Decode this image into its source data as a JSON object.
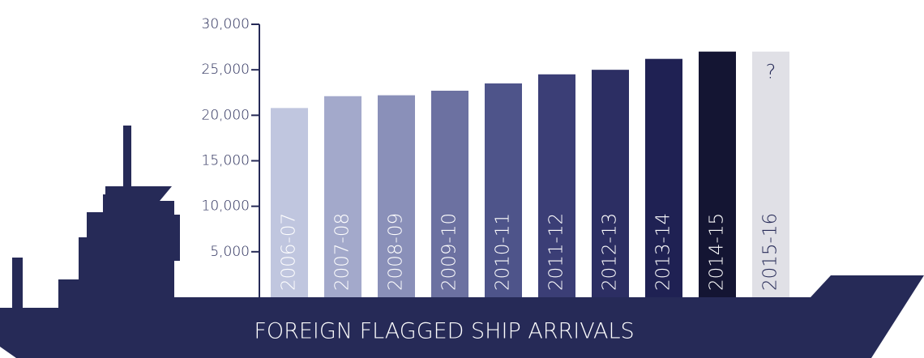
{
  "chart_data": {
    "type": "bar",
    "title": "FOREIGN FLAGGED SHIP ARRIVALS",
    "categories": [
      "2006-07",
      "2007-08",
      "2008-09",
      "2009-10",
      "2010-11",
      "2011-12",
      "2012-13",
      "2013-14",
      "2014-15",
      "2015-16"
    ],
    "values": [
      20800,
      22100,
      22200,
      22700,
      23500,
      24500,
      25000,
      26200,
      27000,
      27000
    ],
    "colors": [
      "#c0c6df",
      "#a3a9cb",
      "#8a90b9",
      "#6c71a1",
      "#4e548a",
      "#3b3e76",
      "#2c2e63",
      "#1f2153",
      "#141533",
      "#e0e0e6"
    ],
    "annotation": "?",
    "ylim": [
      0,
      30000
    ],
    "yticks": [
      {
        "value": 5000,
        "label": "5,000"
      },
      {
        "value": 10000,
        "label": "10,000"
      },
      {
        "value": 15000,
        "label": "15,000"
      },
      {
        "value": 20000,
        "label": "20,000"
      },
      {
        "value": 25000,
        "label": "25,000"
      },
      {
        "value": 30000,
        "label": "30,000"
      }
    ]
  }
}
